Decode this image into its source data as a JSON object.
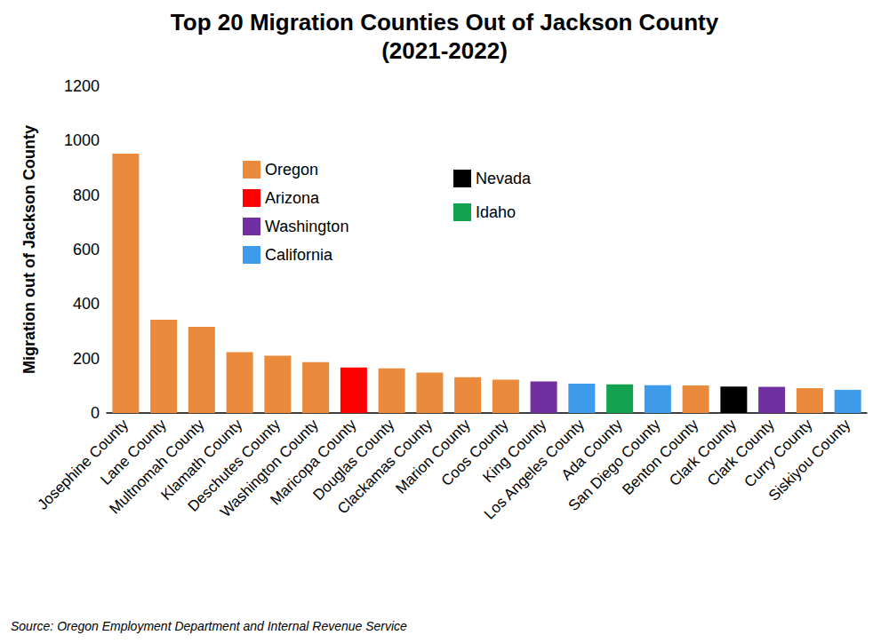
{
  "chart_data": {
    "type": "bar",
    "title": "Top 20 Migration Counties Out of Jackson County\n(2021-2022)",
    "y_label": "Migration out of Jackson County",
    "annotations": [
      "Source: Oregon Employment Department and Internal Revenue Service"
    ],
    "categories": [
      "Josephine County",
      "Lane County",
      "Multnomah County",
      "Klamath County",
      "Deschutes County",
      "Washington County",
      "Maricopa County",
      "Douglas County",
      "Clackamas County",
      "Marion County",
      "Coos County",
      "King County",
      "Los Angeles County",
      "Ada County",
      "San Diego County",
      "Benton County",
      "Clark County",
      "Clark County",
      "Curry County",
      "Siskiyou County"
    ],
    "series": [
      {
        "name": "Oregon",
        "color": "#e98a3c",
        "values": [
          952,
          342,
          316,
          223,
          210,
          187,
          null,
          164,
          148,
          131,
          122,
          null,
          null,
          null,
          null,
          101,
          null,
          null,
          91,
          null
        ]
      },
      {
        "name": "Arizona",
        "color": "#ff0000",
        "values": [
          null,
          null,
          null,
          null,
          null,
          null,
          167,
          null,
          null,
          null,
          null,
          null,
          null,
          null,
          null,
          null,
          null,
          null,
          null,
          null
        ]
      },
      {
        "name": "Washington",
        "color": "#7030a0",
        "values": [
          null,
          null,
          null,
          null,
          null,
          null,
          null,
          null,
          null,
          null,
          null,
          116,
          null,
          null,
          null,
          null,
          null,
          96,
          null,
          null
        ]
      },
      {
        "name": "California",
        "color": "#3d9be9",
        "values": [
          null,
          null,
          null,
          null,
          null,
          null,
          null,
          null,
          null,
          null,
          null,
          null,
          108,
          null,
          102,
          null,
          null,
          null,
          null,
          85
        ]
      },
      {
        "name": "Nevada",
        "color": "#000000",
        "values": [
          null,
          null,
          null,
          null,
          null,
          null,
          null,
          null,
          null,
          null,
          null,
          null,
          null,
          null,
          null,
          null,
          97,
          null,
          null,
          null
        ]
      },
      {
        "name": "Idaho",
        "color": "#13a350",
        "values": [
          null,
          null,
          null,
          null,
          null,
          null,
          null,
          null,
          null,
          null,
          null,
          null,
          null,
          105,
          null,
          null,
          null,
          null,
          null,
          null
        ]
      }
    ],
    "ylim": [
      0,
      1200
    ],
    "yticks": [
      0,
      200,
      400,
      600,
      800,
      1000,
      1200
    ],
    "grid": false
  }
}
